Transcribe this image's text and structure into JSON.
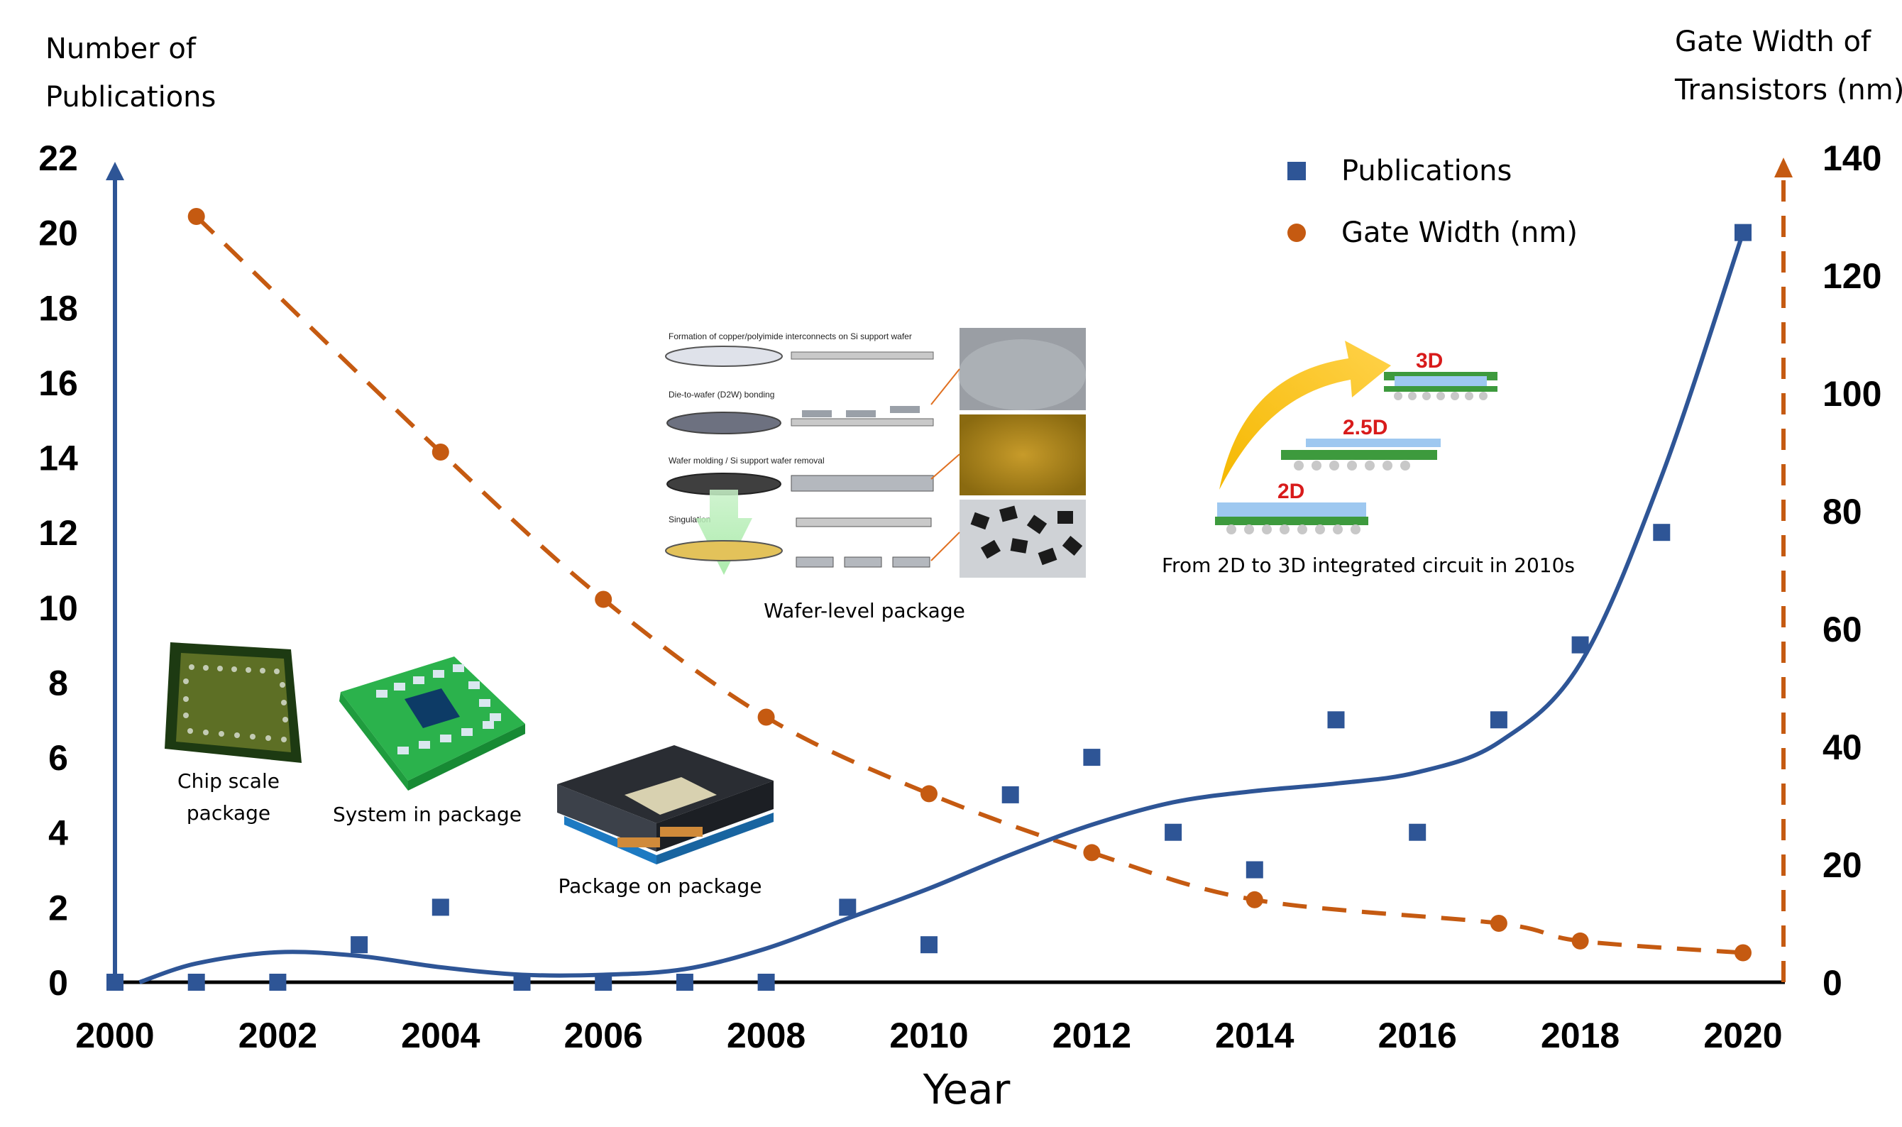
{
  "chart_data": {
    "type": "scatter+line",
    "xlabel": "Year",
    "ylabel_left": [
      "Number of",
      "Publications"
    ],
    "ylabel_right": [
      "Gate Width of",
      "Transistors (nm)"
    ],
    "x_ticks": [
      2000,
      2002,
      2004,
      2006,
      2008,
      2010,
      2012,
      2014,
      2016,
      2018,
      2020
    ],
    "y_left_ticks": [
      0,
      2,
      4,
      6,
      8,
      10,
      12,
      14,
      16,
      18,
      20,
      22
    ],
    "y_right_ticks": [
      0,
      20,
      40,
      60,
      80,
      100,
      120,
      140
    ],
    "xlim": [
      2000,
      2020.5
    ],
    "ylim_left": [
      0,
      22
    ],
    "ylim_right": [
      0,
      140
    ],
    "colors": {
      "publications": "#2e5596",
      "gate_width": "#c55a11"
    },
    "legend": [
      "Publications",
      "Gate Width (nm)"
    ],
    "series": [
      {
        "name": "Publications",
        "axis": "left",
        "marker": "square",
        "x": [
          2000,
          2001,
          2002,
          2003,
          2004,
          2005,
          2006,
          2007,
          2008,
          2009,
          2010,
          2011,
          2012,
          2013,
          2014,
          2015,
          2016,
          2017,
          2018,
          2019,
          2020
        ],
        "values": [
          0,
          0,
          0,
          1,
          2,
          0,
          0,
          0,
          0,
          2,
          1,
          5,
          6,
          4,
          3,
          7,
          4,
          7,
          9,
          12,
          20
        ]
      },
      {
        "name": "Publications trend",
        "axis": "left",
        "style": "smooth-solid",
        "x": [
          2000.3,
          2001,
          2002,
          2003,
          2004,
          2005,
          2006,
          2007,
          2008,
          2009,
          2010,
          2011,
          2012,
          2013,
          2014,
          2015,
          2016,
          2017,
          2018,
          2019,
          2020
        ],
        "values": [
          0,
          0.5,
          0.8,
          0.7,
          0.4,
          0.2,
          0.2,
          0.35,
          0.9,
          1.7,
          2.5,
          3.4,
          4.2,
          4.8,
          5.1,
          5.3,
          5.6,
          6.4,
          8.5,
          13.5,
          20
        ]
      },
      {
        "name": "Gate Width (nm)",
        "axis": "right",
        "marker": "circle",
        "style": "dashed",
        "x": [
          2001,
          2004,
          2006,
          2008,
          2010,
          2012,
          2014,
          2017,
          2018,
          2020
        ],
        "values": [
          130,
          90,
          65,
          45,
          32,
          22,
          14,
          10,
          7,
          5
        ]
      }
    ],
    "annotations": {
      "csp": [
        "Chip scale",
        "package"
      ],
      "sip": "System in package",
      "pop": "Package on package",
      "wlp": "Wafer-level package",
      "wlp_steps": [
        "Formation of copper/polyimide interconnects on Si support wafer",
        "Die-to-wafer (D2W) bonding",
        "Wafer molding / Si support wafer removal",
        "Singulation"
      ],
      "ic3d": "From 2D to 3D integrated circuit in 2010s",
      "ic_labels": [
        "3D",
        "2.5D",
        "2D"
      ]
    }
  }
}
